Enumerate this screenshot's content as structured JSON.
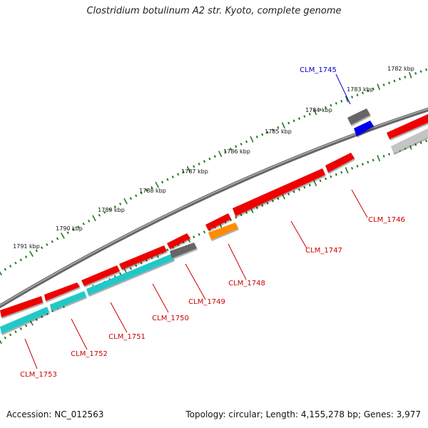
{
  "title": "Clostridium botulinum A2 str. Kyoto, complete genome",
  "footer": {
    "accession": "Accession: NC_012563",
    "topology": "Topology: circular; Length: 4,155,278 bp; Genes: 3,977"
  },
  "colors": {
    "backbone": "#888888",
    "tick": "#1f7a1f",
    "gene_red": "#ee0000",
    "gene_cyan": "#22c8c8",
    "gene_dark_gray": "#666666",
    "gene_light_gray": "#c4c4c4",
    "gene_orange": "#ff8c00",
    "gene_blue": "#0000ee",
    "label_red": "#cc0000",
    "label_blue": "#0000cc"
  },
  "ticks": [
    {
      "label": "1782 kbp"
    },
    {
      "label": "1783 kbp"
    },
    {
      "label": "1784 kbp"
    },
    {
      "label": "1785 kbp"
    },
    {
      "label": "1786 kbp"
    },
    {
      "label": "1787 kbp"
    },
    {
      "label": "1788 kbp"
    },
    {
      "label": "1789 kbp"
    },
    {
      "label": "1790 kbp"
    },
    {
      "label": "1791 kbp"
    }
  ],
  "gene_labels": [
    {
      "name": "CLM_1745",
      "color": "blue"
    },
    {
      "name": "CLM_1746",
      "color": "red"
    },
    {
      "name": "CLM_1747",
      "color": "red"
    },
    {
      "name": "CLM_1748",
      "color": "red"
    },
    {
      "name": "CLM_1749",
      "color": "red"
    },
    {
      "name": "CLM_1750",
      "color": "red"
    },
    {
      "name": "CLM_1751",
      "color": "red"
    },
    {
      "name": "CLM_1752",
      "color": "red"
    },
    {
      "name": "CLM_1753",
      "color": "red"
    }
  ]
}
